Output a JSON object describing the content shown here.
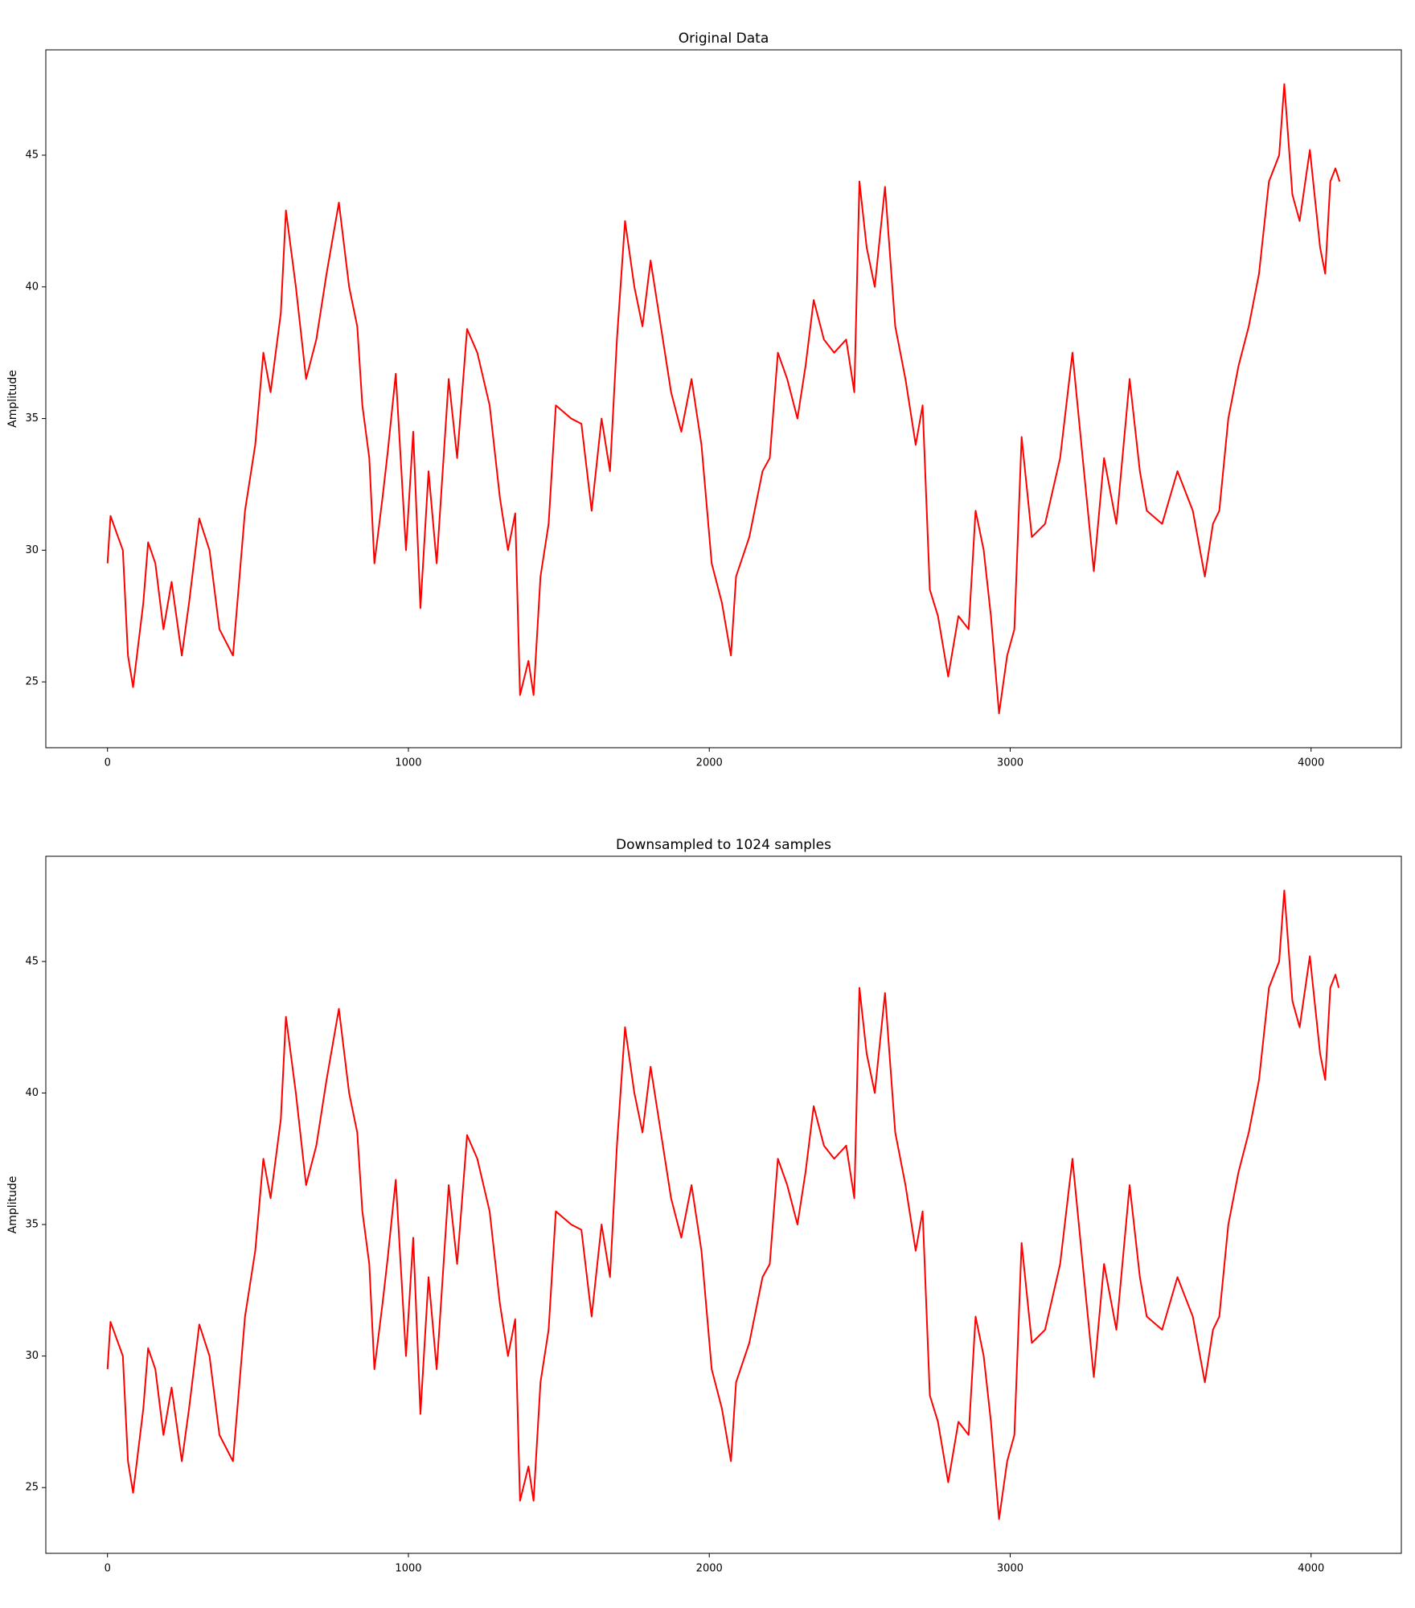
{
  "chart_data": [
    {
      "type": "line",
      "title": "Original Data",
      "y_label": "Amplitude",
      "color": "#ff0000",
      "x": [
        0,
        10,
        51,
        68,
        85,
        119,
        135,
        159,
        186,
        213,
        247,
        271,
        305,
        339,
        372,
        417,
        457,
        491,
        518,
        542,
        576,
        593,
        626,
        660,
        694,
        728,
        769,
        803,
        830,
        847,
        870,
        887,
        914,
        931,
        958,
        992,
        1016,
        1040,
        1067,
        1094,
        1134,
        1162,
        1195,
        1229,
        1270,
        1304,
        1331,
        1355,
        1371,
        1399,
        1416,
        1439,
        1466,
        1490,
        1541,
        1575,
        1609,
        1642,
        1670,
        1693,
        1720,
        1751,
        1778,
        1805,
        1839,
        1873,
        1907,
        1941,
        1974,
        2008,
        2042,
        2072,
        2089,
        2133,
        2177,
        2201,
        2228,
        2259,
        2293,
        2320,
        2347,
        2381,
        2415,
        2455,
        2482,
        2499,
        2523,
        2550,
        2584,
        2618,
        2652,
        2686,
        2709,
        2733,
        2760,
        2794,
        2828,
        2862,
        2885,
        2912,
        2936,
        2963,
        2990,
        3014,
        3038,
        3072,
        3116,
        3166,
        3207,
        3241,
        3278,
        3312,
        3353,
        3397,
        3431,
        3454,
        3505,
        3556,
        3607,
        3647,
        3674,
        3695,
        3725,
        3759,
        3793,
        3827,
        3860,
        3894,
        3911,
        3938,
        3962,
        3996,
        4030,
        4047,
        4064,
        4081,
        4095
      ],
      "values": [
        29.5,
        31.3,
        30,
        26,
        24.8,
        28,
        30.3,
        29.5,
        27,
        28.8,
        26,
        28,
        31.2,
        30,
        27,
        26,
        31.5,
        34,
        37.5,
        36,
        39,
        42.9,
        40,
        36.5,
        38,
        40.5,
        43.2,
        40,
        38.5,
        35.5,
        33.5,
        29.5,
        32,
        33.7,
        36.7,
        30,
        34.5,
        27.8,
        33,
        29.5,
        36.5,
        33.5,
        38.4,
        37.5,
        35.5,
        32,
        30,
        31.4,
        24.5,
        25.8,
        24.5,
        29,
        31,
        35.5,
        35,
        34.8,
        31.5,
        35,
        33,
        38,
        42.5,
        40,
        38.5,
        41,
        38.5,
        36,
        34.5,
        36.5,
        34,
        29.5,
        28,
        26,
        29,
        30.5,
        33,
        33.5,
        37.5,
        36.5,
        35,
        37,
        39.5,
        38,
        37.5,
        38,
        36,
        44,
        41.5,
        40,
        43.8,
        38.5,
        36.5,
        34,
        35.5,
        28.5,
        27.5,
        25.2,
        27.5,
        27,
        31.5,
        30,
        27.5,
        23.8,
        26,
        27,
        34.3,
        30.5,
        31,
        33.5,
        37.5,
        33.5,
        29.2,
        33.5,
        31,
        36.5,
        33,
        31.5,
        31,
        33,
        31.5,
        29,
        31,
        31.5,
        35,
        37,
        38.5,
        40.5,
        44,
        45,
        47.7,
        43.5,
        42.5,
        45.2,
        41.5,
        40.5,
        44,
        44.5,
        44
      ],
      "xlim": [
        -205,
        4300
      ],
      "xticks": [
        0,
        1000,
        2000,
        3000,
        4000
      ],
      "ylim": [
        22.5,
        49
      ],
      "yticks": [
        25,
        30,
        35,
        40,
        45
      ]
    },
    {
      "type": "line",
      "title": "Downsampled to 1024 samples",
      "y_label": "Amplitude",
      "color": "#ff0000",
      "x": [
        0,
        10,
        51,
        68,
        85,
        119,
        135,
        159,
        186,
        213,
        247,
        271,
        305,
        339,
        372,
        417,
        457,
        491,
        518,
        542,
        576,
        593,
        626,
        660,
        694,
        728,
        769,
        803,
        830,
        847,
        870,
        887,
        914,
        931,
        958,
        992,
        1016,
        1040,
        1067,
        1094,
        1134,
        1162,
        1195,
        1229,
        1270,
        1304,
        1331,
        1355,
        1371,
        1399,
        1416,
        1439,
        1466,
        1490,
        1541,
        1575,
        1609,
        1642,
        1670,
        1693,
        1720,
        1751,
        1778,
        1805,
        1839,
        1873,
        1907,
        1941,
        1974,
        2008,
        2042,
        2072,
        2089,
        2133,
        2177,
        2201,
        2228,
        2259,
        2293,
        2320,
        2347,
        2381,
        2415,
        2455,
        2482,
        2499,
        2523,
        2550,
        2584,
        2618,
        2652,
        2686,
        2709,
        2733,
        2760,
        2794,
        2828,
        2862,
        2885,
        2912,
        2936,
        2963,
        2990,
        3014,
        3038,
        3072,
        3116,
        3166,
        3207,
        3241,
        3278,
        3312,
        3353,
        3397,
        3431,
        3454,
        3505,
        3556,
        3607,
        3647,
        3674,
        3695,
        3725,
        3759,
        3793,
        3827,
        3860,
        3894,
        3911,
        3938,
        3962,
        3996,
        4030,
        4047,
        4064,
        4081,
        4092
      ],
      "values": [
        29.5,
        31.3,
        30,
        26,
        24.8,
        28,
        30.3,
        29.5,
        27,
        28.8,
        26,
        28,
        31.2,
        30,
        27,
        26,
        31.5,
        34,
        37.5,
        36,
        39,
        42.9,
        40,
        36.5,
        38,
        40.5,
        43.2,
        40,
        38.5,
        35.5,
        33.5,
        29.5,
        32,
        33.7,
        36.7,
        30,
        34.5,
        27.8,
        33,
        29.5,
        36.5,
        33.5,
        38.4,
        37.5,
        35.5,
        32,
        30,
        31.4,
        24.5,
        25.8,
        24.5,
        29,
        31,
        35.5,
        35,
        34.8,
        31.5,
        35,
        33,
        38,
        42.5,
        40,
        38.5,
        41,
        38.5,
        36,
        34.5,
        36.5,
        34,
        29.5,
        28,
        26,
        29,
        30.5,
        33,
        33.5,
        37.5,
        36.5,
        35,
        37,
        39.5,
        38,
        37.5,
        38,
        36,
        44,
        41.5,
        40,
        43.8,
        38.5,
        36.5,
        34,
        35.5,
        28.5,
        27.5,
        25.2,
        27.5,
        27,
        31.5,
        30,
        27.5,
        23.8,
        26,
        27,
        34.3,
        30.5,
        31,
        33.5,
        37.5,
        33.5,
        29.2,
        33.5,
        31,
        36.5,
        33,
        31.5,
        31,
        33,
        31.5,
        29,
        31,
        31.5,
        35,
        37,
        38.5,
        40.5,
        44,
        45,
        47.7,
        43.5,
        42.5,
        45.2,
        41.5,
        40.5,
        44,
        44.5,
        44
      ],
      "xlim": [
        -205,
        4300
      ],
      "xticks": [
        0,
        1000,
        2000,
        3000,
        4000
      ],
      "ylim": [
        22.5,
        49
      ],
      "yticks": [
        25,
        30,
        35,
        40,
        45
      ]
    }
  ]
}
